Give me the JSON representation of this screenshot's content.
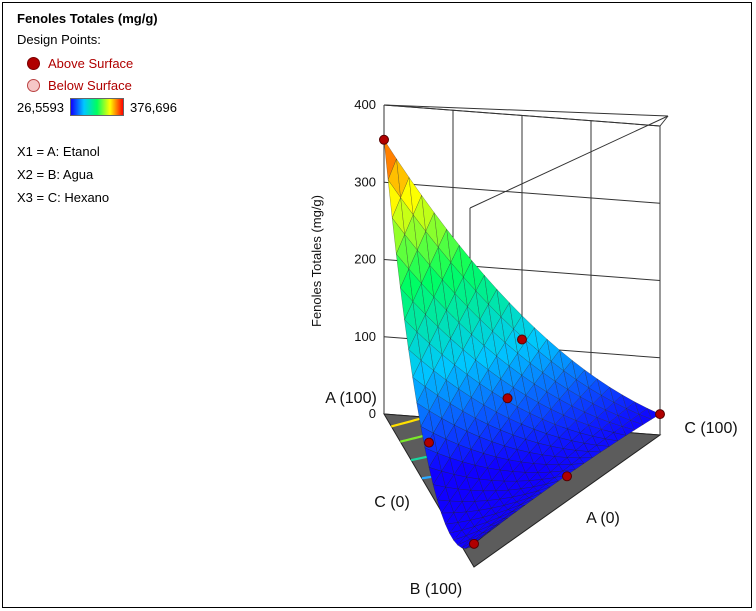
{
  "legend": {
    "title": "Fenoles Totales (mg/g)",
    "design_points_label": "Design Points:",
    "above_surface": "Above Surface",
    "below_surface": "Below Surface",
    "scale_min": "26,5593",
    "scale_max": "376,696",
    "x1": "X1 = A: Etanol",
    "x2": "X2 = B: Agua",
    "x3": "X3 = C: Hexano"
  },
  "colors": {
    "above_surface": "#b00000",
    "below_surface": "#f6c6c6",
    "scale": [
      "#1000ff",
      "#00c8ff",
      "#00ff60",
      "#ffff00",
      "#ff0000"
    ],
    "floor": "#5c5c5c"
  },
  "chart_data": {
    "type": "surface3d-ternary",
    "response": "Fenoles Totales (mg/g)",
    "zlabel": "Fenoles Totales (mg/g)",
    "zlim": [
      0,
      400
    ],
    "zticks": [
      "0",
      "100",
      "200",
      "300",
      "400"
    ],
    "vertex_labels": [
      "A (100)",
      "C (100)",
      "B (100)"
    ],
    "edge_labels": [
      "C (0)",
      "A (0)"
    ],
    "components": [
      "A: Etanol",
      "B: Agua",
      "C: Hexano"
    ],
    "design_points": [
      {
        "A": 100,
        "B": 0,
        "C": 0,
        "z": 355
      },
      {
        "A": 0,
        "B": 0,
        "C": 100,
        "z": 27
      },
      {
        "A": 0,
        "B": 100,
        "C": 0,
        "z": 30
      },
      {
        "A": 50,
        "B": 50,
        "C": 0,
        "z": 62
      },
      {
        "A": 50,
        "B": 0,
        "C": 50,
        "z": 110
      },
      {
        "A": 33,
        "B": 33,
        "C": 34,
        "z": 95
      },
      {
        "A": 0,
        "B": 50,
        "C": 50,
        "z": 32
      }
    ]
  }
}
